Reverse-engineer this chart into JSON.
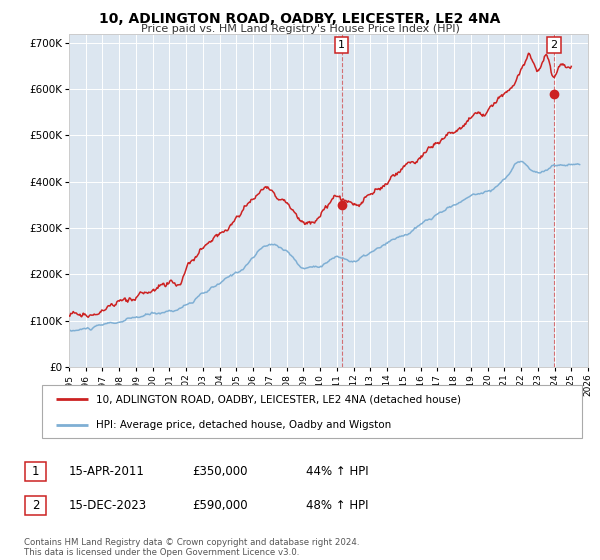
{
  "title": "10, ADLINGTON ROAD, OADBY, LEICESTER, LE2 4NA",
  "subtitle": "Price paid vs. HM Land Registry's House Price Index (HPI)",
  "bg_color": "#dce6f0",
  "plot_bg_color": "#dce6f0",
  "legend_line1": "10, ADLINGTON ROAD, OADBY, LEICESTER, LE2 4NA (detached house)",
  "legend_line2": "HPI: Average price, detached house, Oadby and Wigston",
  "hpi_color": "#7fafd4",
  "price_color": "#cc2222",
  "marker_color": "#cc2222",
  "sale1_year": 2011.29,
  "sale1_price": 350000,
  "sale2_year": 2023.96,
  "sale2_price": 590000,
  "footnote": "Contains HM Land Registry data © Crown copyright and database right 2024.\nThis data is licensed under the Open Government Licence v3.0.",
  "ylim": [
    0,
    720000
  ],
  "xlim_start": 1995,
  "xlim_end": 2026,
  "yticks": [
    0,
    100000,
    200000,
    300000,
    400000,
    500000,
    600000,
    700000
  ],
  "ytick_labels": [
    "£0",
    "£100K",
    "£200K",
    "£300K",
    "£400K",
    "£500K",
    "£600K",
    "£700K"
  ],
  "xticks": [
    1995,
    1996,
    1997,
    1998,
    1999,
    2000,
    2001,
    2002,
    2003,
    2004,
    2005,
    2006,
    2007,
    2008,
    2009,
    2010,
    2011,
    2012,
    2013,
    2014,
    2015,
    2016,
    2017,
    2018,
    2019,
    2020,
    2021,
    2022,
    2023,
    2024,
    2025,
    2026
  ]
}
